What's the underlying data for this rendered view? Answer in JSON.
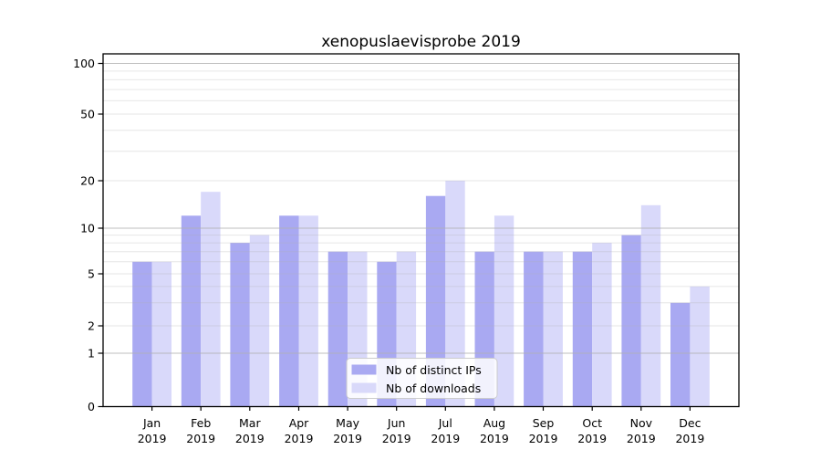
{
  "chart_data": {
    "type": "bar",
    "title": "xenopuslaevisprobe 2019",
    "categories": [
      "Jan",
      "Feb",
      "Mar",
      "Apr",
      "May",
      "Jun",
      "Jul",
      "Aug",
      "Sep",
      "Oct",
      "Nov",
      "Dec"
    ],
    "x_sublabel": "2019",
    "series": [
      {
        "name": "Nb of distinct IPs",
        "color": "#a9a9f2",
        "values": [
          6,
          12,
          8,
          12,
          7,
          6,
          16,
          7,
          7,
          7,
          9,
          3
        ]
      },
      {
        "name": "Nb of downloads",
        "color": "#d9d9fa",
        "values": [
          6,
          17,
          9,
          12,
          7,
          7,
          20,
          12,
          7,
          8,
          14,
          4
        ]
      }
    ],
    "xlabel": "",
    "ylabel": "",
    "yscale": "symlog",
    "ylim": [
      0,
      100
    ],
    "y_ticks_labeled": [
      100,
      50,
      20,
      10,
      5,
      2,
      1,
      0
    ],
    "y_major_gridlines": [
      1,
      10,
      100
    ],
    "y_minor_gridlines": [
      2,
      3,
      4,
      5,
      6,
      7,
      8,
      9,
      20,
      30,
      40,
      50,
      60,
      70,
      80,
      90
    ],
    "grid": true,
    "legend_position": "lower center"
  }
}
